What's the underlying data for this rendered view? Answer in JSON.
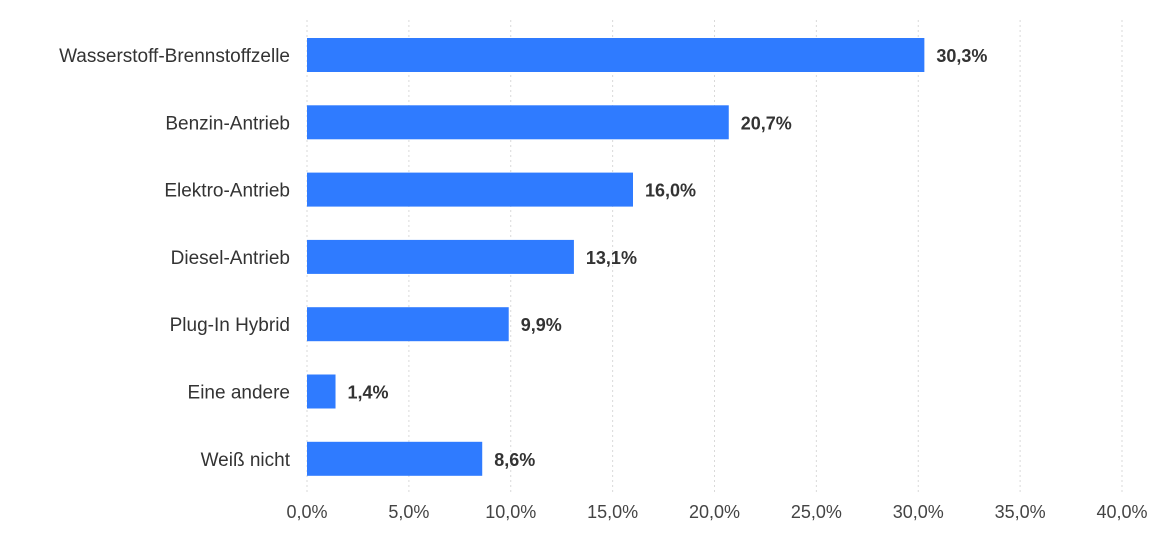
{
  "chart_data": {
    "type": "bar",
    "orientation": "horizontal",
    "categories": [
      "Wasserstoff-Brennstoffzelle",
      "Benzin-Antrieb",
      "Elektro-Antrieb",
      "Diesel-Antrieb",
      "Plug-In Hybrid",
      "Eine andere",
      "Weiß nicht"
    ],
    "values": [
      30.3,
      20.7,
      16.0,
      13.1,
      9.9,
      1.4,
      8.6
    ],
    "value_labels": [
      "30,3%",
      "20,7%",
      "16,0%",
      "13,1%",
      "9,9%",
      "1,4%",
      "8,6%"
    ],
    "title": "",
    "xlabel": "",
    "ylabel": "",
    "xlim": [
      0,
      40
    ],
    "x_ticks": [
      0,
      5,
      10,
      15,
      20,
      25,
      30,
      35,
      40
    ],
    "x_tick_labels": [
      "0,0%",
      "5,0%",
      "10,0%",
      "15,0%",
      "20,0%",
      "25,0%",
      "30,0%",
      "35,0%",
      "40,0%"
    ],
    "grid": true,
    "legend": "none",
    "bar_color": "#2F7BFF"
  }
}
